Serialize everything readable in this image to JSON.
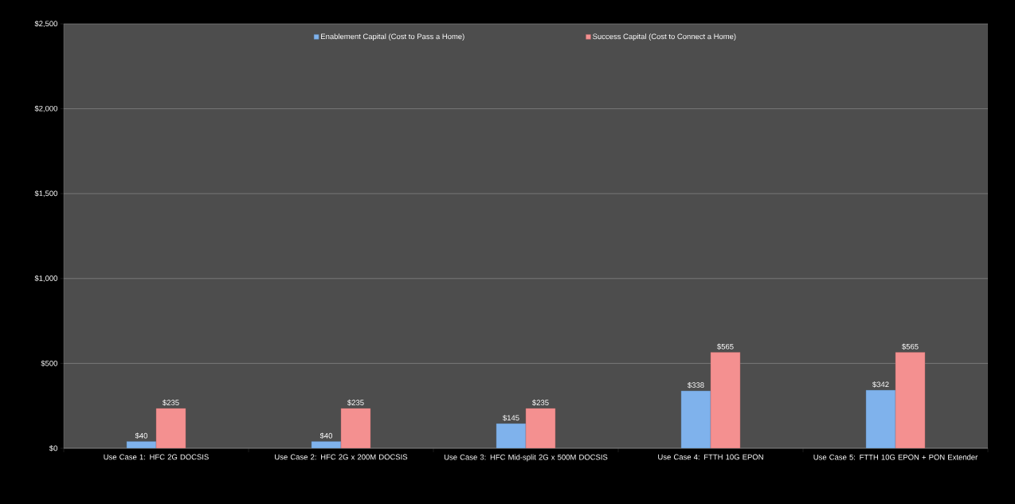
{
  "chart_data": {
    "type": "bar",
    "categories": [
      "Use Case 1: HFC 2G DOCSIS",
      "Use Case 2: HFC 2G x 200M DOCSIS",
      "Use Case 3: HFC Mid-split 2G x 500M DOCSIS",
      "Use Case 4: FTTH 10G EPON",
      "Use Case 5: FTTH 10G EPON + PON Extender"
    ],
    "series": [
      {
        "name": "Enablement Capital (Cost to Pass a Home)",
        "color": "#7fb2ec",
        "values": [
          40,
          40,
          145,
          338,
          342
        ],
        "value_labels": [
          "$40",
          "$40",
          "$145",
          "$338",
          "$342"
        ]
      },
      {
        "name": "Success Capital (Cost to Connect a Home)",
        "color": "#f49090",
        "values": [
          235,
          235,
          235,
          565,
          565
        ],
        "value_labels": [
          "$235",
          "$235",
          "$235",
          "$565",
          "$565"
        ]
      }
    ],
    "ylim": [
      0,
      2500
    ],
    "yticks": [
      {
        "value": 0,
        "label": "$0"
      },
      {
        "value": 500,
        "label": "$500"
      },
      {
        "value": 1000,
        "label": "$1,000"
      },
      {
        "value": 1500,
        "label": "$1,500"
      },
      {
        "value": 2000,
        "label": "$2,000"
      },
      {
        "value": 2500,
        "label": "$2,500"
      }
    ],
    "grid": "y",
    "legend": "top"
  }
}
